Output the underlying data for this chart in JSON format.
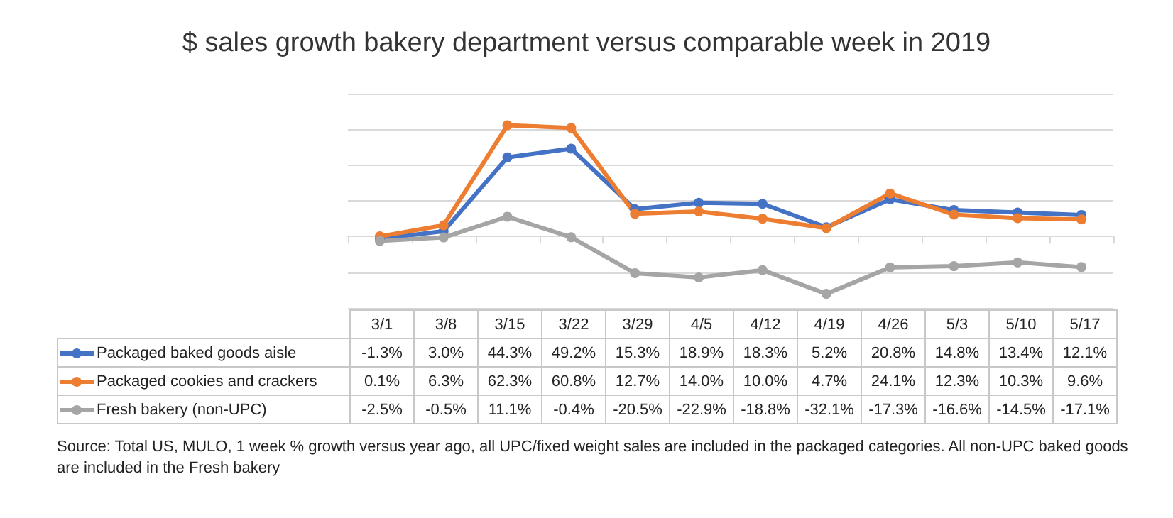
{
  "chart_data": {
    "type": "line",
    "title": "$ sales growth bakery department versus comparable week in 2019",
    "categories": [
      "3/1",
      "3/8",
      "3/15",
      "3/22",
      "3/29",
      "4/5",
      "4/12",
      "4/19",
      "4/26",
      "5/3",
      "5/10",
      "5/17"
    ],
    "series": [
      {
        "name": "Packaged baked goods aisle",
        "color": "#4472c4",
        "values": [
          -1.3,
          3.0,
          44.3,
          49.2,
          15.3,
          18.9,
          18.3,
          5.2,
          20.8,
          14.8,
          13.4,
          12.1
        ],
        "value_labels": [
          "-1.3%",
          "3.0%",
          "44.3%",
          "49.2%",
          "15.3%",
          "18.9%",
          "18.3%",
          "5.2%",
          "20.8%",
          "14.8%",
          "13.4%",
          "12.1%"
        ]
      },
      {
        "name": "Packaged cookies and crackers",
        "color": "#ed7d31",
        "values": [
          0.1,
          6.3,
          62.3,
          60.8,
          12.7,
          14.0,
          10.0,
          4.7,
          24.1,
          12.3,
          10.3,
          9.6
        ],
        "value_labels": [
          "0.1%",
          "6.3%",
          "62.3%",
          "60.8%",
          "12.7%",
          "14.0%",
          "10.0%",
          "4.7%",
          "24.1%",
          "12.3%",
          "10.3%",
          "9.6%"
        ]
      },
      {
        "name": "Fresh bakery (non-UPC)",
        "color": "#a5a5a5",
        "values": [
          -2.5,
          -0.5,
          11.1,
          -0.4,
          -20.5,
          -22.9,
          -18.8,
          -32.1,
          -17.3,
          -16.6,
          -14.5,
          -17.1
        ],
        "value_labels": [
          "-2.5%",
          "-0.5%",
          "11.1%",
          "-0.4%",
          "-20.5%",
          "-22.9%",
          "-18.8%",
          "-32.1%",
          "-17.3%",
          "-16.6%",
          "-14.5%",
          "-17.1%"
        ]
      }
    ],
    "ylim": [
      -40,
      80
    ],
    "yticks": [
      {
        "value": -40,
        "label": null
      },
      {
        "value": -20,
        "label": null
      },
      {
        "value": 0,
        "label": null
      },
      {
        "value": 20,
        "label": null
      },
      {
        "value": 40,
        "label": null
      },
      {
        "value": 60,
        "label": null
      },
      {
        "value": 80,
        "label": null
      }
    ],
    "grid": "y",
    "tick_labels": "x",
    "legend": "bottom",
    "marker": "circle",
    "line_style": "solid",
    "annotations": [
      "Source: Total US, MULO, 1 week % growth versus year ago, all UPC/fixed weight sales are included in the packaged categories. All non-UPC baked goods are included in the Fresh bakery"
    ]
  }
}
